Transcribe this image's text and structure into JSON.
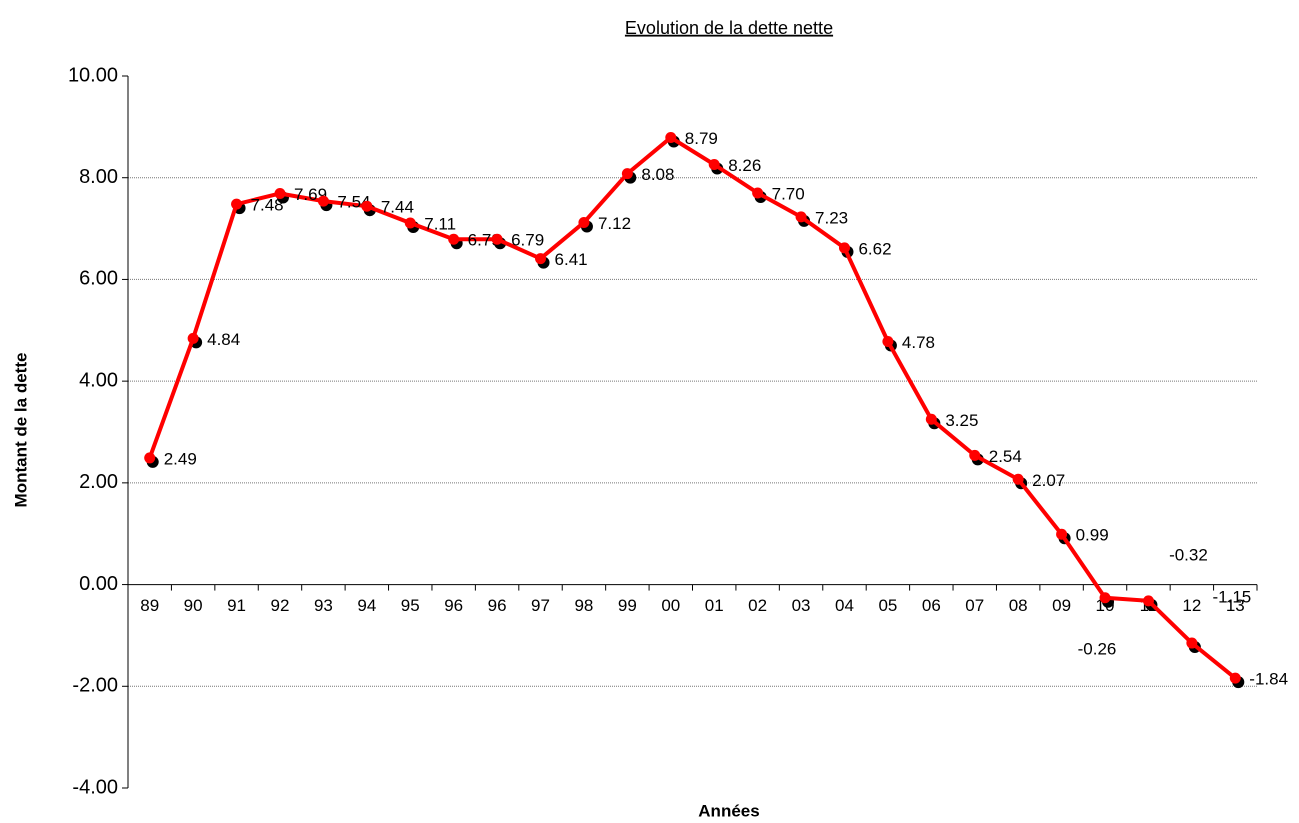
{
  "chart_data": {
    "type": "line",
    "title": "Evolution de la dette nette",
    "x_label": "Années",
    "y_label": "Montant de la dette",
    "categories": [
      "89",
      "90",
      "91",
      "92",
      "93",
      "94",
      "95",
      "96",
      "96",
      "97",
      "98",
      "99",
      "00",
      "01",
      "02",
      "03",
      "04",
      "05",
      "06",
      "07",
      "08",
      "09",
      "10",
      "11",
      "12",
      "13"
    ],
    "series": [
      {
        "name": "Dette nette",
        "color": "#ff0000",
        "values": [
          2.49,
          4.84,
          7.48,
          7.69,
          7.54,
          7.44,
          7.11,
          6.79,
          6.79,
          6.41,
          7.12,
          8.08,
          8.79,
          8.26,
          7.7,
          7.23,
          6.62,
          4.78,
          3.25,
          2.54,
          2.07,
          0.99,
          -0.26,
          -0.32,
          -1.15,
          -1.84
        ],
        "value_labels": [
          "2.49",
          "4.84",
          "7.48",
          "7.69",
          "7.54",
          "7.44",
          "7.11",
          "6.79",
          "6.79",
          "6.41",
          "7.12",
          "8.08",
          "8.79",
          "8.26",
          "7.70",
          "7.23",
          "6.62",
          "4.78",
          "3.25",
          "2.54",
          "2.07",
          "0.99",
          "-0.26",
          "-0.32",
          "-1.15",
          "-1.84"
        ]
      }
    ],
    "ylim": [
      -4,
      10
    ],
    "yticks": [
      {
        "value": -4,
        "label": "-4.00"
      },
      {
        "value": -2,
        "label": "-2.00"
      },
      {
        "value": 0,
        "label": "0.00"
      },
      {
        "value": 2,
        "label": "2.00"
      },
      {
        "value": 4,
        "label": "4.00"
      },
      {
        "value": 6,
        "label": "6.00"
      },
      {
        "value": 8,
        "label": "8.00"
      },
      {
        "value": 10,
        "label": "10.00"
      }
    ],
    "grid": true
  }
}
